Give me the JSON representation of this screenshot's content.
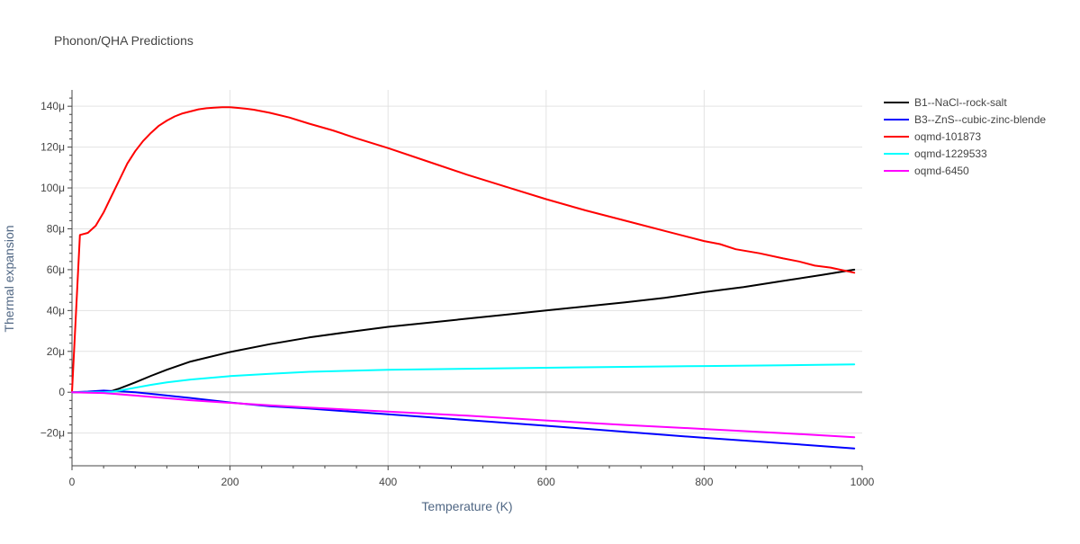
{
  "chart_data": {
    "type": "line",
    "title": "Phonon/QHA Predictions",
    "xlabel": "Temperature (K)",
    "ylabel": "Thermal expansion",
    "xlim": [
      0,
      1000
    ],
    "ylim": [
      -36,
      148
    ],
    "y_unit_suffix": "μ",
    "x_ticks": [
      "0",
      "200",
      "400",
      "600",
      "800",
      "1000"
    ],
    "x_tick_values": [
      0,
      200,
      400,
      600,
      800,
      1000
    ],
    "y_ticks": [
      "−20μ",
      "0",
      "20μ",
      "40μ",
      "60μ",
      "80μ",
      "100μ",
      "120μ",
      "140μ"
    ],
    "y_tick_values": [
      -20,
      0,
      20,
      40,
      60,
      80,
      100,
      120,
      140
    ],
    "grid": true,
    "legend_position": "top-right",
    "series": [
      {
        "name": "B1--NaCl--rock-salt",
        "color": "#000000",
        "x": [
          0,
          20,
          40,
          50,
          60,
          80,
          100,
          120,
          150,
          200,
          250,
          300,
          350,
          400,
          450,
          500,
          550,
          600,
          650,
          700,
          750,
          800,
          850,
          900,
          950,
          990
        ],
        "y": [
          0,
          0,
          0.3,
          0.6,
          1.8,
          4.8,
          8,
          11,
          15,
          19.7,
          23.5,
          26.8,
          29.5,
          32,
          34,
          36,
          38,
          40,
          42,
          44,
          46.2,
          49,
          51.5,
          54.5,
          57.5,
          60
        ]
      },
      {
        "name": "B3--ZnS--cubic-zinc-blende",
        "color": "#0000ff",
        "x": [
          0,
          20,
          40,
          50,
          60,
          80,
          100,
          150,
          200,
          250,
          300,
          400,
          500,
          600,
          700,
          800,
          900,
          990
        ],
        "y": [
          0,
          0.3,
          0.8,
          0.6,
          0.5,
          0,
          -0.8,
          -2.8,
          -5,
          -6.8,
          -8,
          -10.8,
          -13.6,
          -16.4,
          -19.4,
          -22.3,
          -25,
          -27.5
        ]
      },
      {
        "name": "oqmd-101873",
        "color": "#ff0000",
        "x": [
          0,
          10,
          20,
          30,
          40,
          50,
          60,
          70,
          80,
          90,
          100,
          110,
          120,
          130,
          140,
          150,
          160,
          170,
          180,
          190,
          200,
          210,
          220,
          230,
          250,
          275,
          300,
          330,
          360,
          400,
          450,
          500,
          550,
          600,
          650,
          700,
          750,
          800,
          820,
          840,
          870,
          900,
          920,
          940,
          960,
          990
        ],
        "y": [
          0,
          77,
          78,
          81.5,
          88,
          96,
          104,
          112,
          118,
          123,
          127,
          130.5,
          133,
          135,
          136.5,
          137.5,
          138.5,
          139,
          139.3,
          139.5,
          139.5,
          139.2,
          138.8,
          138.3,
          136.8,
          134.5,
          131.5,
          128.2,
          124.3,
          119.5,
          113,
          106.5,
          100.5,
          94.5,
          89,
          84,
          79,
          74,
          72.5,
          70,
          68,
          65.5,
          64,
          62,
          61,
          58.5
        ]
      },
      {
        "name": "oqmd-1229533",
        "color": "#00ffff",
        "x": [
          0,
          20,
          40,
          50,
          60,
          80,
          100,
          120,
          150,
          200,
          250,
          300,
          350,
          400,
          500,
          600,
          700,
          800,
          900,
          990
        ],
        "y": [
          0,
          0,
          0,
          0.2,
          0.8,
          2.2,
          3.6,
          4.8,
          6.2,
          7.9,
          9,
          10,
          10.5,
          11,
          11.5,
          12,
          12.4,
          12.8,
          13.2,
          13.6
        ]
      },
      {
        "name": "oqmd-6450",
        "color": "#ff00ff",
        "x": [
          0,
          20,
          40,
          60,
          80,
          100,
          150,
          200,
          250,
          300,
          400,
          500,
          600,
          700,
          800,
          900,
          990
        ],
        "y": [
          0,
          -0.2,
          -0.4,
          -1,
          -1.6,
          -2.3,
          -3.9,
          -5.2,
          -6.4,
          -7.5,
          -9.5,
          -11.5,
          -13.8,
          -16,
          -18,
          -20,
          -22
        ]
      }
    ]
  }
}
